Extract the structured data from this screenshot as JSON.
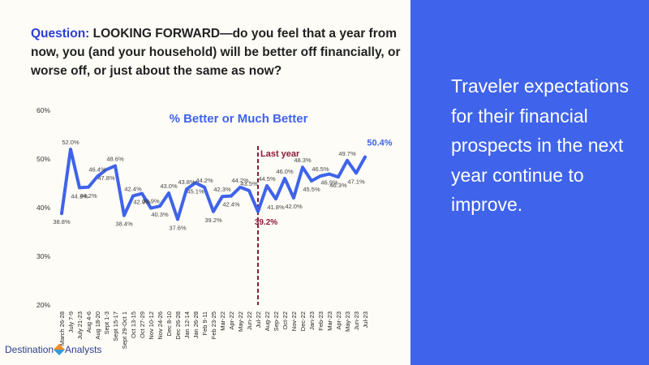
{
  "question": {
    "label": "Question:",
    "text": "LOOKING FORWARD—do you feel that a year from now, you (and your household) will be better off financially, or worse off, or just about the same as now?"
  },
  "side_text": "Traveler expectations for their financial prospects in the next year continue to improve.",
  "logo": {
    "left": "Destination",
    "right": "Analysts"
  },
  "colors": {
    "series": "#3f63ea",
    "marker": "#8b1a3a",
    "panel": "#3f63ea"
  },
  "chart_data": {
    "type": "line",
    "title": "% Better or Much Better",
    "xlabel": "",
    "ylabel": "",
    "ylim": [
      20,
      60
    ],
    "yticks": [
      "20%",
      "30%",
      "40%",
      "50%",
      "60%"
    ],
    "grid": false,
    "x_tick_labels": [
      "March 26-28",
      "July 7-9",
      "July 21-23",
      "Aug 4-6",
      "Aug 18-20",
      "Sept 1-3",
      "Sept 15-17",
      "Sept 29-Oct 1",
      "Oct 13-15",
      "Oct 27-29",
      "Nov 10-12",
      "Nov 24-26",
      "Dec 8-10",
      "Dec 26-28",
      "Jan 12-14",
      "Jan 26-28",
      "Feb 9-11",
      "Feb 23-25",
      "Mar-22",
      "Apr-22",
      "May-22",
      "Jun-22",
      "Jul-22",
      "Aug-22",
      "Sep-22",
      "Oct-22",
      "Nov-22",
      "Dec-22",
      "Jan-23",
      "Feb-23",
      "Mar-23",
      "Apr-23",
      "May-23",
      "Jun-23",
      "Jul-23"
    ],
    "values": [
      38.8,
      52.0,
      44.1,
      44.2,
      46.4,
      47.8,
      48.6,
      38.4,
      42.4,
      42.9,
      39.9,
      40.3,
      43.0,
      37.6,
      43.8,
      45.1,
      44.2,
      39.2,
      42.3,
      42.4,
      44.2,
      43.5,
      39.2,
      44.5,
      41.8,
      46.0,
      42.0,
      48.3,
      45.5,
      46.5,
      46.9,
      46.3,
      49.7,
      47.1,
      50.4
    ],
    "data_labels": [
      "38.8%",
      "52.0%",
      "44.1%",
      "44.2%",
      "46.4%",
      "47.8%",
      "48.6%",
      "38.4%",
      "42.4%",
      "42.9%",
      "39.9%",
      "40.3%",
      "43.0%",
      "37.6%",
      "43.8%",
      "45.1%",
      "44.2%",
      "39.2%",
      "42.3%",
      "42.4%",
      "44.2%",
      "43.5%",
      "39.2%",
      "44.5%",
      "41.8%",
      "46.0%",
      "42.0%",
      "48.3%",
      "45.5%",
      "46.5%",
      "46.9%",
      "46.3%",
      "49.7%",
      "47.1%",
      "50.4%"
    ],
    "label_position": [
      "below",
      "above",
      "below",
      "below",
      "above",
      "below",
      "above",
      "below",
      "above",
      "below",
      "above",
      "below",
      "above",
      "below",
      "above",
      "below",
      "above",
      "below",
      "above",
      "below",
      "above",
      "above",
      "below",
      "above",
      "below",
      "above",
      "below",
      "above",
      "below",
      "above",
      "below",
      "below",
      "above",
      "below",
      "above"
    ],
    "annotation": {
      "text": "Last year",
      "index": 22
    }
  }
}
